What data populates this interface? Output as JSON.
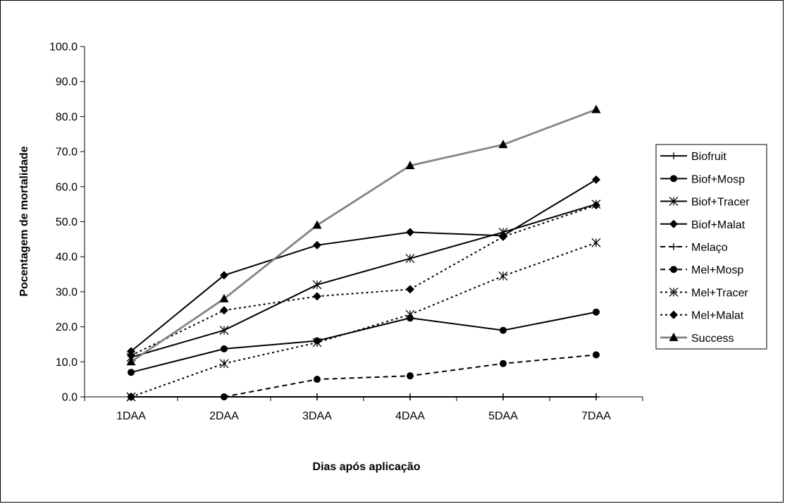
{
  "chart_data": {
    "type": "line",
    "title": "",
    "xlabel": "Dias após aplicação",
    "ylabel": "Pocentagem de mortalidade",
    "ylim": [
      0,
      100
    ],
    "ytick_labels": [
      "0.0",
      "10.0",
      "20.0",
      "30.0",
      "40.0",
      "50.0",
      "60.0",
      "70.0",
      "80.0",
      "90.0",
      "100.0"
    ],
    "categories": [
      "1DAA",
      "2DAA",
      "3DAA",
      "4DAA",
      "5DAA",
      "7DAA"
    ],
    "grid": false,
    "legend_position": "right",
    "series": [
      {
        "name": "Biofruit",
        "values": [
          0,
          0,
          0,
          0,
          0,
          0
        ],
        "line": "solid",
        "marker": "plus",
        "color": "#000000"
      },
      {
        "name": "Biof+Mosp",
        "values": [
          7,
          13.7,
          16,
          22.5,
          19,
          24.2
        ],
        "line": "solid",
        "marker": "circle",
        "color": "#000000"
      },
      {
        "name": "Biof+Tracer",
        "values": [
          11.3,
          19,
          32,
          39.5,
          47,
          55
        ],
        "line": "solid",
        "marker": "star",
        "color": "#000000"
      },
      {
        "name": "Biof+Malat",
        "values": [
          13,
          34.7,
          43.3,
          47,
          46,
          62
        ],
        "line": "solid",
        "marker": "diamond",
        "color": "#000000"
      },
      {
        "name": "Melaço",
        "values": [
          0,
          0,
          0,
          0,
          0,
          0
        ],
        "line": "dashed",
        "marker": "plus",
        "color": "#000000"
      },
      {
        "name": "Mel+Mosp",
        "values": [
          0,
          0,
          5,
          6,
          9.5,
          12
        ],
        "line": "dashed",
        "marker": "circle",
        "color": "#000000"
      },
      {
        "name": "Mel+Tracer",
        "values": [
          0,
          9.5,
          15.5,
          23.5,
          34.5,
          44
        ],
        "line": "dotted",
        "marker": "star",
        "color": "#000000"
      },
      {
        "name": "Mel+Malat",
        "values": [
          11.8,
          24.7,
          28.7,
          30.7,
          45.7,
          54.7
        ],
        "line": "dotted",
        "marker": "diamond",
        "color": "#000000"
      },
      {
        "name": "Success",
        "values": [
          10,
          28,
          49,
          66,
          72,
          82
        ],
        "line": "solid-double",
        "marker": "triangle",
        "color": "#555555"
      }
    ]
  }
}
